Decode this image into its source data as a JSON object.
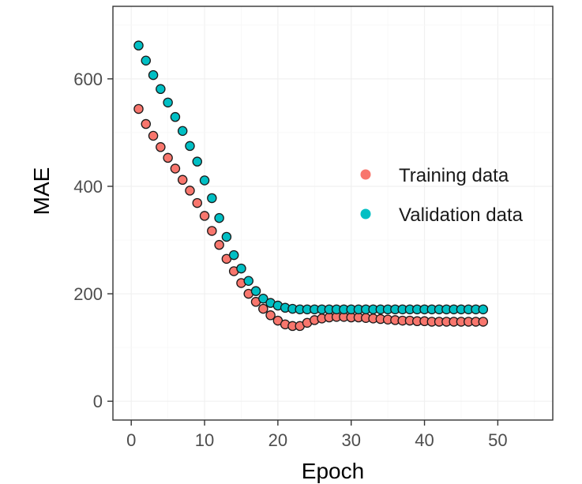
{
  "chart_data": {
    "type": "scatter",
    "title": "",
    "xlabel": "Epoch",
    "ylabel": "MAE",
    "xlim": [
      -2.5,
      57.5
    ],
    "ylim": [
      -35,
      735
    ],
    "xticks": [
      0,
      10,
      20,
      30,
      40,
      50
    ],
    "yticks": [
      0,
      200,
      400,
      600
    ],
    "grid": false,
    "legend_position": "right",
    "x": [
      1,
      2,
      3,
      4,
      5,
      6,
      7,
      8,
      9,
      10,
      11,
      12,
      13,
      14,
      15,
      16,
      17,
      18,
      19,
      20,
      21,
      22,
      23,
      24,
      25,
      26,
      27,
      28,
      29,
      30,
      31,
      32,
      33,
      34,
      35,
      36,
      37,
      38,
      39,
      40,
      41,
      42,
      43,
      44,
      45,
      46,
      47,
      48
    ],
    "series": [
      {
        "name": "Training data",
        "color": "#F8766D",
        "values": [
          544,
          516,
          494,
          473,
          453,
          433,
          412,
          392,
          369,
          345,
          317,
          291,
          265,
          242,
          220,
          200,
          185,
          172,
          160,
          150,
          143,
          140,
          140,
          146,
          151,
          154,
          156,
          157,
          157,
          156,
          156,
          155,
          154,
          153,
          152,
          151,
          150,
          150,
          149,
          149,
          148,
          148,
          148,
          148,
          148,
          148,
          148,
          148
        ]
      },
      {
        "name": "Validation data",
        "color": "#00BFC4",
        "values": [
          662,
          634,
          607,
          581,
          556,
          529,
          503,
          475,
          446,
          411,
          378,
          341,
          306,
          272,
          247,
          224,
          205,
          191,
          183,
          178,
          174,
          172,
          171,
          171,
          171,
          171,
          171,
          171,
          171,
          171,
          171,
          171,
          171,
          171,
          171,
          171,
          171,
          171,
          171,
          171,
          171,
          171,
          171,
          171,
          171,
          171,
          171,
          171
        ]
      }
    ]
  }
}
